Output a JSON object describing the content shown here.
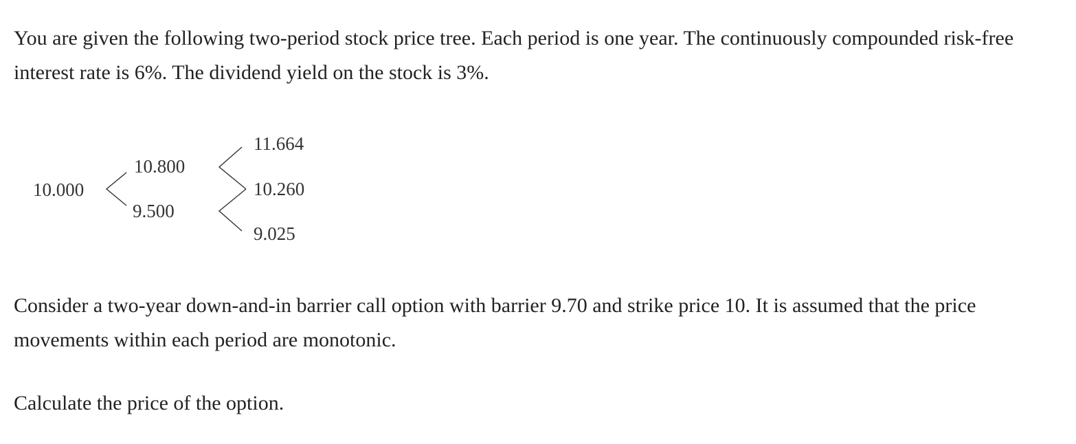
{
  "intro": "You are given the following two-period stock price tree. Each period is one year. The continuously compounded risk-free interest rate is 6%. The dividend yield on the stock is 3%.",
  "tree": {
    "root": "10.000",
    "up": "10.800",
    "down": "9.500",
    "upup": "11.664",
    "updown": "10.260",
    "downdown": "9.025"
  },
  "option_text": "Consider a two-year down-and-in barrier call option with barrier 9.70 and strike price 10. It is assumed that the price movements within each period are monotonic.",
  "question": "Calculate the price of the option."
}
